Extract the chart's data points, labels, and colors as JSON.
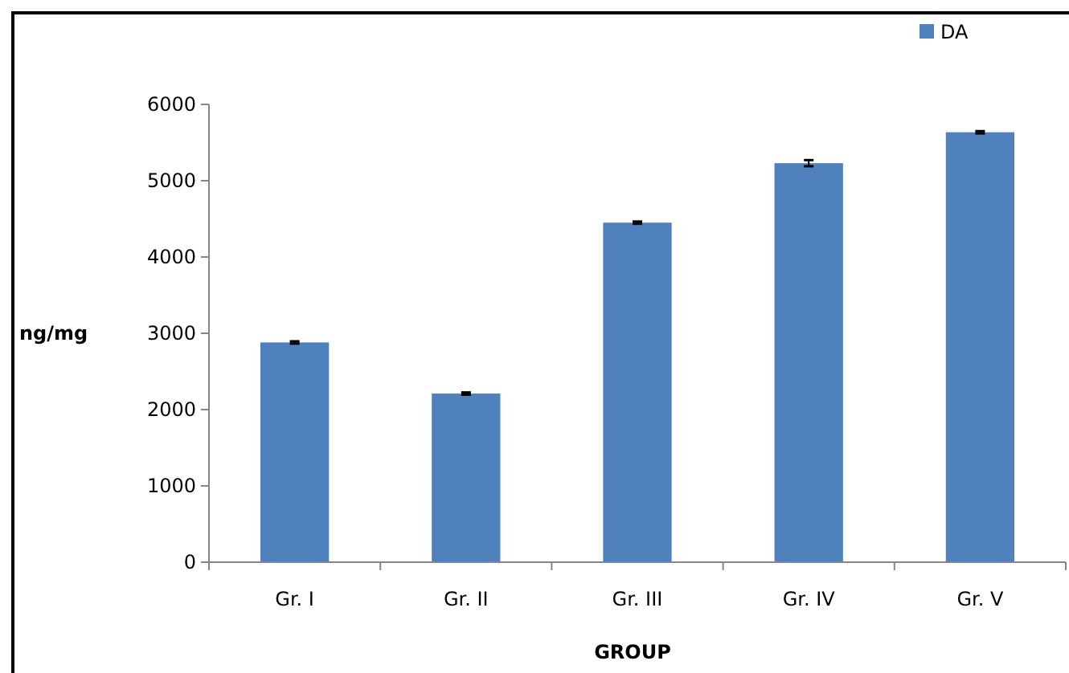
{
  "chart_data": {
    "type": "bar",
    "xlabel": "GROUP",
    "ylabel": "ng/mg",
    "categories": [
      "Gr. I",
      "Gr. II",
      "Gr. III",
      "Gr. IV",
      "Gr. V"
    ],
    "series": [
      {
        "name": "DA",
        "color": "#4f81bd",
        "values": [
          2880,
          2210,
          4450,
          5230,
          5635
        ],
        "errors": [
          15,
          15,
          15,
          40,
          15
        ]
      }
    ],
    "ylim": [
      0,
      6000
    ],
    "yticks": [
      0,
      1000,
      2000,
      3000,
      4000,
      5000,
      6000
    ],
    "grid": false,
    "legend": "top right"
  }
}
